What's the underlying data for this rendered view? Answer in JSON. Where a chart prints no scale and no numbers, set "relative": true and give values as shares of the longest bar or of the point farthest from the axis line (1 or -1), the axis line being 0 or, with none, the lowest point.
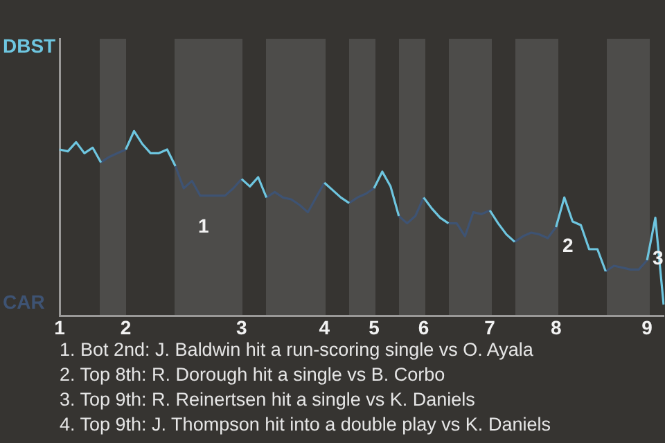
{
  "chart_data": {
    "type": "line",
    "relative": true,
    "categories": [
      "1",
      null,
      null,
      null,
      null,
      null,
      null,
      null,
      "2",
      null,
      null,
      null,
      null,
      null,
      null,
      null,
      null,
      null,
      null,
      null,
      null,
      null,
      "3",
      null,
      null,
      null,
      null,
      null,
      null,
      null,
      null,
      null,
      "4",
      null,
      null,
      null,
      null,
      null,
      "5",
      null,
      null,
      null,
      null,
      null,
      "6",
      null,
      null,
      null,
      null,
      null,
      null,
      null,
      "7",
      null,
      null,
      null,
      null,
      null,
      null,
      null,
      "8",
      null,
      null,
      null,
      null,
      null,
      null,
      null,
      null,
      null,
      null,
      "9",
      null,
      null
    ],
    "series": [
      {
        "color": "#6ec6e0",
        "values": [
          0.9,
          0.89,
          0.94,
          0.88,
          0.91,
          0.83,
          null,
          null,
          0.9,
          1,
          0.93,
          0.88,
          0.88,
          0.9,
          0.81,
          null,
          null,
          null,
          null,
          null,
          null,
          null,
          0.74,
          0.7,
          0.75,
          0.64,
          null,
          null,
          null,
          null,
          null,
          null,
          0.72,
          0.68,
          0.64,
          0.61,
          null,
          null,
          0.69,
          0.78,
          0.7,
          0.54,
          null,
          null,
          0.64,
          0.58,
          0.53,
          0.5,
          null,
          null,
          null,
          null,
          0.57,
          0.5,
          0.44,
          0.4,
          null,
          null,
          null,
          null,
          0.48,
          0.64,
          0.51,
          0.49,
          0.36,
          0.36,
          0.24,
          null,
          null,
          null,
          null,
          0.3,
          0.53,
          0.06
        ]
      },
      {
        "color": "#3e5373",
        "values": [
          null,
          null,
          null,
          null,
          null,
          0.83,
          0.86,
          0.88,
          0.9,
          null,
          null,
          null,
          null,
          null,
          0.81,
          0.69,
          0.73,
          0.65,
          0.65,
          0.65,
          0.65,
          0.69,
          0.74,
          null,
          null,
          0.64,
          0.67,
          0.64,
          0.63,
          0.6,
          0.56,
          0.64,
          0.72,
          null,
          null,
          0.61,
          0.64,
          0.66,
          0.69,
          null,
          null,
          0.54,
          0.5,
          0.54,
          0.64,
          null,
          null,
          0.5,
          0.5,
          0.43,
          0.56,
          0.55,
          0.57,
          null,
          null,
          0.4,
          0.43,
          0.45,
          0.44,
          0.42,
          0.48,
          null,
          null,
          null,
          null,
          null,
          0.24,
          0.27,
          0.26,
          0.25,
          0.25,
          0.3,
          null,
          null
        ]
      }
    ],
    "legend": false,
    "marker": "none",
    "line_style": "solid",
    "annotations": [
      "DBST",
      "CAR",
      "1",
      "2",
      "3",
      "1. Bot 2nd: J. Baldwin hit a run-scoring single vs O. Ayala",
      "2. Top 8th: R. Dorough hit a single vs B. Corbo",
      "3. Top 9th: R. Reinertsen hit a single vs K. Daniels",
      "4. Top 9th: J. Thompson hit into a double play vs K. Daniels"
    ]
  }
}
